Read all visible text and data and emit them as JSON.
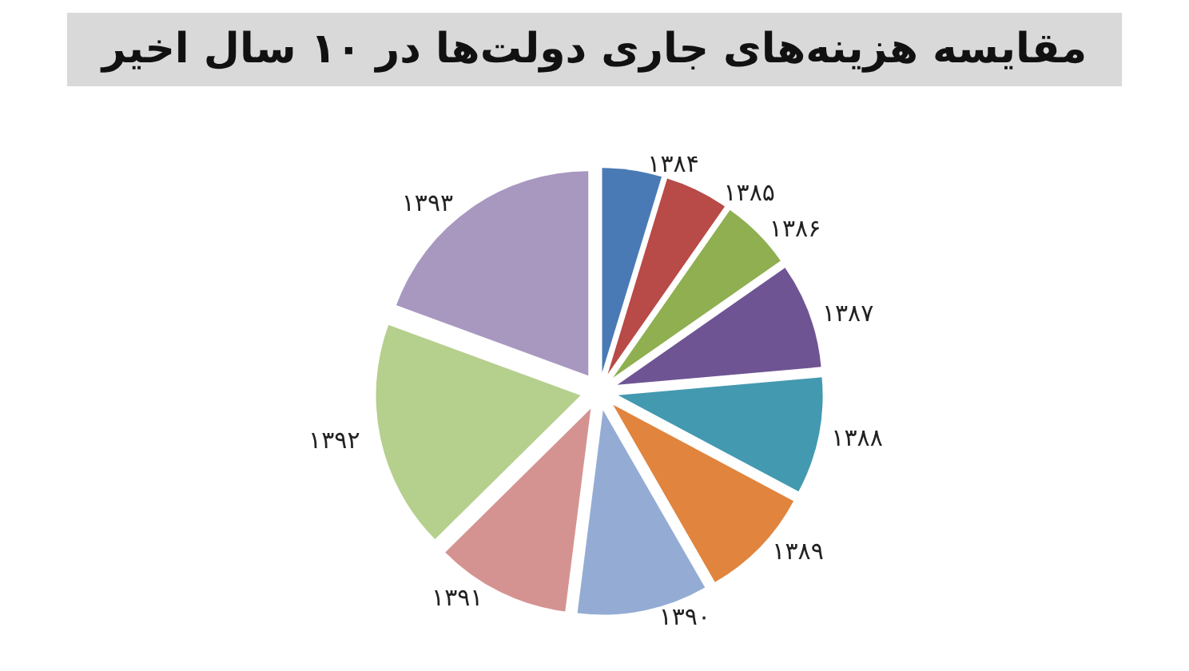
{
  "chart_data": {
    "type": "pie",
    "title": "مقایسه هزینه‌های جاری دولت‌ها در ۱۰ سال اخیر",
    "categories": [
      "۱۳۸۴",
      "۱۳۸۵",
      "۱۳۸۶",
      "۱۳۸۷",
      "۱۳۸۸",
      "۱۳۸۹",
      "۱۳۹۰",
      "۱۳۹۱",
      "۱۳۹۲",
      "۱۳۹۳"
    ],
    "values": [
      4.7,
      5,
      5.6,
      8.3,
      9.2,
      8.9,
      10.3,
      10.6,
      18,
      19.4
    ],
    "colors": [
      "#4a7ab5",
      "#b84a48",
      "#8faf50",
      "#6f5494",
      "#4399b0",
      "#e0843e",
      "#94acd4",
      "#d49391",
      "#b5cf8d",
      "#a898c0"
    ],
    "legend": false
  }
}
